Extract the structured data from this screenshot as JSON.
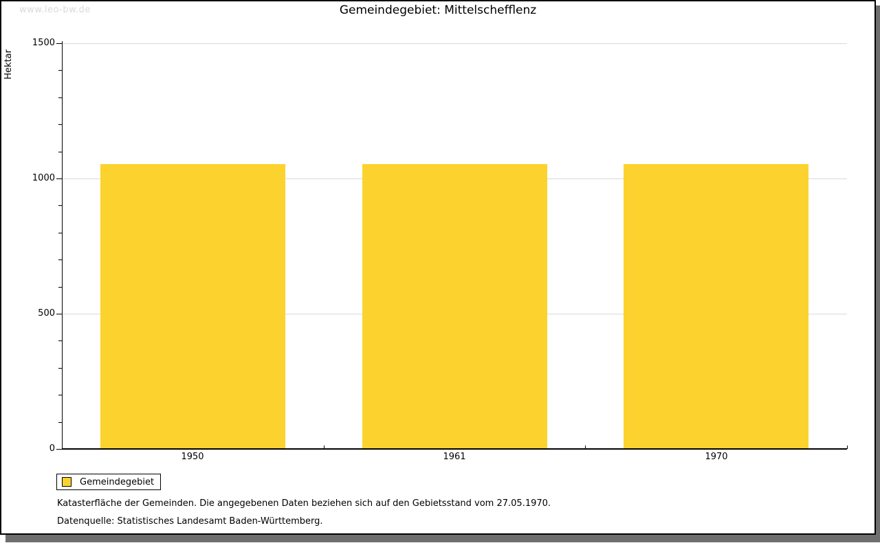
{
  "watermark": "www.leo-bw.de",
  "chart_data": {
    "type": "bar",
    "title": "Gemeindegebiet: Mittelschefflenz",
    "ylabel": "Hektar",
    "xlabel": "",
    "categories": [
      "1950",
      "1961",
      "1970"
    ],
    "series": [
      {
        "name": "Gemeindegebiet",
        "values": [
          1053,
          1053,
          1053
        ]
      }
    ],
    "ylim": [
      0,
      1500
    ],
    "yticks": {
      "major": 500,
      "minor": 100,
      "major_labels": [
        "0",
        "500",
        "1000",
        "1500"
      ]
    },
    "grid": "horizontal-major-gridlines",
    "legend_position": "bottom-left"
  },
  "legend": {
    "label": "Gemeindegebiet"
  },
  "footnotes": [
    "Katasterfläche der Gemeinden. Die angegebenen Daten beziehen sich auf den Gebietsstand vom 27.05.1970.",
    "Datenquelle: Statistisches Landesamt Baden-Württemberg."
  ],
  "colors": {
    "bar": "#FCD32E",
    "gridline": "#D9D9D9",
    "axis": "#000000",
    "watermark": "#D9D9D9",
    "shadow": "#6E6E6E"
  }
}
